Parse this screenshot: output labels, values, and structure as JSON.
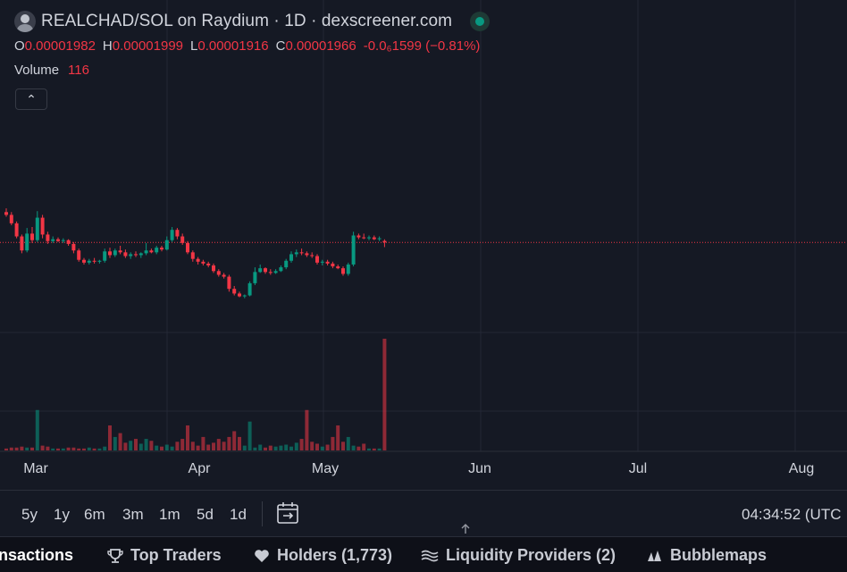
{
  "chart": {
    "pair_title": "REALCHAD/SOL on Raydium · 1D · dexscreener.com",
    "ohlc": {
      "o_key": "O",
      "o_val": "0.00001982",
      "h_key": "H",
      "h_val": "0.00001999",
      "l_key": "L",
      "l_val": "0.00001916",
      "c_key": "C",
      "c_val": "0.00001966",
      "change": "-0.0₆1599 (−0.81%)"
    },
    "volume_label": "Volume",
    "volume_value": "116",
    "collapse_glyph": "⌃",
    "x_axis_months": [
      "Mar",
      "Apr",
      "May",
      "Jun",
      "Jul",
      "Aug"
    ]
  },
  "colors": {
    "up": "#089981",
    "down": "#f23645",
    "background": "#151924",
    "grid": "#232735",
    "price_line": "#f23645"
  },
  "chart_data": {
    "type": "candlestick",
    "interval": "1D",
    "last_close": 1.966e-05,
    "candles": [
      {
        "o": 22.9,
        "h": 23.3,
        "l": 22.4,
        "c": 22.6,
        "v": 2,
        "d": "Feb 26"
      },
      {
        "o": 22.6,
        "h": 22.9,
        "l": 21.5,
        "c": 21.7,
        "v": 3,
        "d": "Feb 27"
      },
      {
        "o": 21.7,
        "h": 21.9,
        "l": 20.1,
        "c": 20.3,
        "v": 3,
        "d": "Feb 28"
      },
      {
        "o": 20.3,
        "h": 20.5,
        "l": 18.5,
        "c": 18.8,
        "v": 4,
        "d": "Feb 29"
      },
      {
        "o": 18.8,
        "h": 21.2,
        "l": 18.6,
        "c": 20.6,
        "v": 3,
        "d": "Mar 1"
      },
      {
        "o": 20.6,
        "h": 21.3,
        "l": 19.6,
        "c": 19.9,
        "v": 3,
        "d": "Mar 2"
      },
      {
        "o": 19.9,
        "h": 23.0,
        "l": 19.7,
        "c": 22.3,
        "v": 42,
        "d": "Mar 3"
      },
      {
        "o": 22.3,
        "h": 22.6,
        "l": 20.1,
        "c": 20.5,
        "v": 5,
        "d": "Mar 4"
      },
      {
        "o": 20.5,
        "h": 20.8,
        "l": 19.5,
        "c": 19.8,
        "v": 4,
        "d": "Mar 5"
      },
      {
        "o": 19.8,
        "h": 20.3,
        "l": 19.6,
        "c": 20.0,
        "v": 2,
        "d": "Mar 6"
      },
      {
        "o": 20.0,
        "h": 20.2,
        "l": 19.7,
        "c": 19.8,
        "v": 2,
        "d": "Mar 7"
      },
      {
        "o": 19.8,
        "h": 20.1,
        "l": 19.6,
        "c": 19.9,
        "v": 2,
        "d": "Mar 8"
      },
      {
        "o": 19.9,
        "h": 20.0,
        "l": 19.3,
        "c": 19.5,
        "v": 3,
        "d": "Mar 9"
      },
      {
        "o": 19.5,
        "h": 19.7,
        "l": 18.5,
        "c": 18.8,
        "v": 3,
        "d": "Mar 10"
      },
      {
        "o": 18.8,
        "h": 19.0,
        "l": 17.6,
        "c": 17.8,
        "v": 2,
        "d": "Mar 11"
      },
      {
        "o": 17.8,
        "h": 18.0,
        "l": 17.3,
        "c": 17.5,
        "v": 2,
        "d": "Mar 12"
      },
      {
        "o": 17.5,
        "h": 17.9,
        "l": 17.3,
        "c": 17.7,
        "v": 3,
        "d": "Mar 13"
      },
      {
        "o": 17.7,
        "h": 18.0,
        "l": 17.4,
        "c": 17.6,
        "v": 2,
        "d": "Mar 14"
      },
      {
        "o": 17.6,
        "h": 17.8,
        "l": 17.4,
        "c": 17.7,
        "v": 2,
        "d": "Mar 15"
      },
      {
        "o": 17.7,
        "h": 19.0,
        "l": 17.5,
        "c": 18.7,
        "v": 4,
        "d": "Mar 16"
      },
      {
        "o": 18.7,
        "h": 19.1,
        "l": 18.0,
        "c": 18.3,
        "v": 26,
        "d": "Mar 17"
      },
      {
        "o": 18.3,
        "h": 19.0,
        "l": 18.1,
        "c": 18.8,
        "v": 14,
        "d": "Mar 18"
      },
      {
        "o": 18.8,
        "h": 19.3,
        "l": 18.4,
        "c": 18.6,
        "v": 18,
        "d": "Mar 19"
      },
      {
        "o": 18.6,
        "h": 18.9,
        "l": 18.0,
        "c": 18.2,
        "v": 8,
        "d": "Mar 20"
      },
      {
        "o": 18.2,
        "h": 18.6,
        "l": 17.9,
        "c": 18.4,
        "v": 10,
        "d": "Mar 21"
      },
      {
        "o": 18.4,
        "h": 18.7,
        "l": 18.1,
        "c": 18.3,
        "v": 12,
        "d": "Mar 22"
      },
      {
        "o": 18.3,
        "h": 18.6,
        "l": 18.0,
        "c": 18.5,
        "v": 7,
        "d": "Mar 23"
      },
      {
        "o": 18.5,
        "h": 19.6,
        "l": 18.3,
        "c": 18.8,
        "v": 12,
        "d": "Mar 24"
      },
      {
        "o": 18.8,
        "h": 19.0,
        "l": 18.5,
        "c": 18.6,
        "v": 10,
        "d": "Mar 25"
      },
      {
        "o": 18.6,
        "h": 19.3,
        "l": 18.4,
        "c": 19.1,
        "v": 5,
        "d": "Mar 26"
      },
      {
        "o": 19.1,
        "h": 19.3,
        "l": 18.7,
        "c": 18.9,
        "v": 4,
        "d": "Mar 27"
      },
      {
        "o": 18.9,
        "h": 20.3,
        "l": 18.8,
        "c": 19.9,
        "v": 6,
        "d": "Mar 28"
      },
      {
        "o": 19.9,
        "h": 21.3,
        "l": 19.7,
        "c": 21.0,
        "v": 4,
        "d": "Mar 29"
      },
      {
        "o": 21.0,
        "h": 21.2,
        "l": 20.0,
        "c": 20.3,
        "v": 9,
        "d": "Mar 30"
      },
      {
        "o": 20.3,
        "h": 20.6,
        "l": 19.4,
        "c": 19.6,
        "v": 12,
        "d": "Mar 31"
      },
      {
        "o": 19.6,
        "h": 19.8,
        "l": 18.4,
        "c": 18.6,
        "v": 26,
        "d": "Apr 1"
      },
      {
        "o": 18.6,
        "h": 18.8,
        "l": 17.6,
        "c": 17.9,
        "v": 9,
        "d": "Apr 2"
      },
      {
        "o": 17.9,
        "h": 18.1,
        "l": 17.3,
        "c": 17.6,
        "v": 5,
        "d": "Apr 3"
      },
      {
        "o": 17.6,
        "h": 17.8,
        "l": 17.2,
        "c": 17.4,
        "v": 14,
        "d": "Apr 4"
      },
      {
        "o": 17.4,
        "h": 17.6,
        "l": 17.0,
        "c": 17.2,
        "v": 6,
        "d": "Apr 5"
      },
      {
        "o": 17.2,
        "h": 17.4,
        "l": 16.4,
        "c": 16.6,
        "v": 8,
        "d": "Apr 6"
      },
      {
        "o": 16.6,
        "h": 16.8,
        "l": 16.0,
        "c": 16.2,
        "v": 12,
        "d": "Apr 7"
      },
      {
        "o": 16.2,
        "h": 16.4,
        "l": 15.8,
        "c": 16.0,
        "v": 9,
        "d": "Apr 8"
      },
      {
        "o": 16.0,
        "h": 16.2,
        "l": 14.4,
        "c": 14.7,
        "v": 14,
        "d": "Apr 9"
      },
      {
        "o": 14.7,
        "h": 15.0,
        "l": 14.0,
        "c": 14.2,
        "v": 20,
        "d": "Apr 10"
      },
      {
        "o": 14.2,
        "h": 14.4,
        "l": 13.8,
        "c": 13.9,
        "v": 14,
        "d": "Apr 11"
      },
      {
        "o": 13.9,
        "h": 14.1,
        "l": 13.7,
        "c": 14.0,
        "v": 5,
        "d": "Apr 12"
      },
      {
        "o": 14.0,
        "h": 15.5,
        "l": 13.9,
        "c": 15.3,
        "v": 30,
        "d": "Apr 13"
      },
      {
        "o": 15.3,
        "h": 17.0,
        "l": 15.1,
        "c": 16.5,
        "v": 3,
        "d": "Apr 14"
      },
      {
        "o": 16.5,
        "h": 17.3,
        "l": 16.4,
        "c": 16.9,
        "v": 6,
        "d": "Apr 15"
      },
      {
        "o": 16.9,
        "h": 17.0,
        "l": 16.3,
        "c": 16.5,
        "v": 3,
        "d": "Apr 16"
      },
      {
        "o": 16.5,
        "h": 16.8,
        "l": 16.2,
        "c": 16.4,
        "v": 5,
        "d": "Apr 17"
      },
      {
        "o": 16.4,
        "h": 16.8,
        "l": 16.3,
        "c": 16.6,
        "v": 4,
        "d": "Apr 18"
      },
      {
        "o": 16.6,
        "h": 17.2,
        "l": 16.5,
        "c": 17.0,
        "v": 5,
        "d": "Apr 19"
      },
      {
        "o": 17.0,
        "h": 17.9,
        "l": 16.8,
        "c": 17.7,
        "v": 6,
        "d": "Apr 20"
      },
      {
        "o": 17.7,
        "h": 18.7,
        "l": 17.5,
        "c": 18.4,
        "v": 4,
        "d": "Apr 21"
      },
      {
        "o": 18.4,
        "h": 18.9,
        "l": 18.1,
        "c": 18.6,
        "v": 8,
        "d": "Apr 22"
      },
      {
        "o": 18.6,
        "h": 19.0,
        "l": 18.3,
        "c": 18.5,
        "v": 12,
        "d": "Apr 23"
      },
      {
        "o": 18.5,
        "h": 18.7,
        "l": 18.1,
        "c": 18.3,
        "v": 42,
        "d": "Apr 24"
      },
      {
        "o": 18.3,
        "h": 18.6,
        "l": 18.0,
        "c": 18.2,
        "v": 9,
        "d": "Apr 25"
      },
      {
        "o": 18.2,
        "h": 18.4,
        "l": 17.3,
        "c": 17.5,
        "v": 7,
        "d": "Apr 26"
      },
      {
        "o": 17.5,
        "h": 17.8,
        "l": 17.2,
        "c": 17.6,
        "v": 4,
        "d": "Apr 27"
      },
      {
        "o": 17.6,
        "h": 17.8,
        "l": 17.2,
        "c": 17.4,
        "v": 6,
        "d": "Apr 28"
      },
      {
        "o": 17.4,
        "h": 17.6,
        "l": 16.9,
        "c": 17.1,
        "v": 14,
        "d": "Apr 29"
      },
      {
        "o": 17.1,
        "h": 17.3,
        "l": 16.8,
        "c": 16.9,
        "v": 26,
        "d": "Apr 30"
      },
      {
        "o": 16.9,
        "h": 17.1,
        "l": 16.1,
        "c": 16.3,
        "v": 9,
        "d": "May 1"
      },
      {
        "o": 16.3,
        "h": 17.5,
        "l": 16.1,
        "c": 17.3,
        "v": 14,
        "d": "May 2"
      },
      {
        "o": 17.3,
        "h": 20.8,
        "l": 17.1,
        "c": 20.4,
        "v": 5,
        "d": "May 3"
      },
      {
        "o": 20.4,
        "h": 20.6,
        "l": 20.0,
        "c": 20.2,
        "v": 4,
        "d": "May 4"
      },
      {
        "o": 20.2,
        "h": 20.6,
        "l": 20.0,
        "c": 20.1,
        "v": 7,
        "d": "May 5"
      },
      {
        "o": 20.1,
        "h": 20.4,
        "l": 19.9,
        "c": 20.2,
        "v": 2,
        "d": "May 6"
      },
      {
        "o": 20.2,
        "h": 20.4,
        "l": 19.9,
        "c": 20.0,
        "v": 2,
        "d": "May 7"
      },
      {
        "o": 20.0,
        "h": 20.3,
        "l": 19.8,
        "c": 20.1,
        "v": 2,
        "d": "May 8"
      },
      {
        "o": 19.82,
        "h": 19.99,
        "l": 19.16,
        "c": 19.66,
        "v": 116,
        "d": "May 9"
      }
    ],
    "volume_ylim": [
      0,
      116
    ]
  },
  "toolbar": {
    "timeframes": [
      "5y",
      "1y",
      "6m",
      "3m",
      "1m",
      "5d",
      "1d"
    ],
    "clock": "04:34:52 (UTC"
  },
  "tabs": {
    "transactions": "nsactions",
    "top_traders": "Top Traders",
    "holders": "Holders (1,773)",
    "liquidity": "Liquidity Providers (2)",
    "bubblemaps": "Bubblemaps"
  }
}
